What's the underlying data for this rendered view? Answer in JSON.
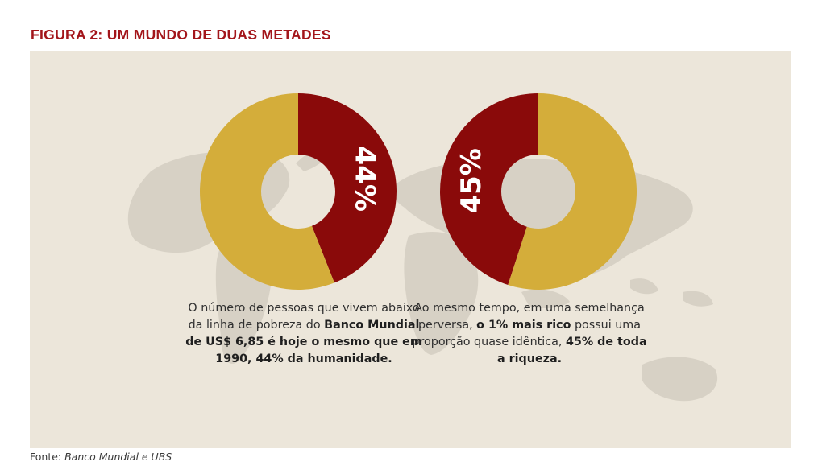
{
  "figure_title": "FIGURA 2: UM MUNDO DE DUAS METADES",
  "colors": {
    "dark_red": "#8a0a0a",
    "gold": "#d4ad3a",
    "title_red": "#a3161b",
    "panel_bg": "#ece6da",
    "map_gray": "#d7d1c5"
  },
  "chart_data": [
    {
      "type": "pie",
      "donut": true,
      "slices": [
        {
          "label": "44%",
          "value": 44,
          "color": "#8a0a0a"
        },
        {
          "value": 56,
          "color": "#d4ad3a"
        }
      ],
      "caption": {
        "text1": "O número de pessoas que vivem abaixo da linha de pobreza do ",
        "bold1": "Banco Mundial de US$ 6,85 é hoje o mesmo que em 1990, 44% da humanidade."
      }
    },
    {
      "type": "pie",
      "donut": true,
      "slices": [
        {
          "label": "45%",
          "value": 45,
          "color": "#8a0a0a"
        },
        {
          "value": 55,
          "color": "#d4ad3a"
        }
      ],
      "caption": {
        "text1": "Ao mesmo tempo, em uma semelhança perversa, ",
        "bold1": "o 1% mais rico",
        "text2": " possui uma proporção quase idêntica, ",
        "bold2": "45% de toda a riqueza."
      }
    }
  ],
  "source": {
    "prefix": "Fonte: ",
    "name": "Banco Mundial e UBS"
  }
}
